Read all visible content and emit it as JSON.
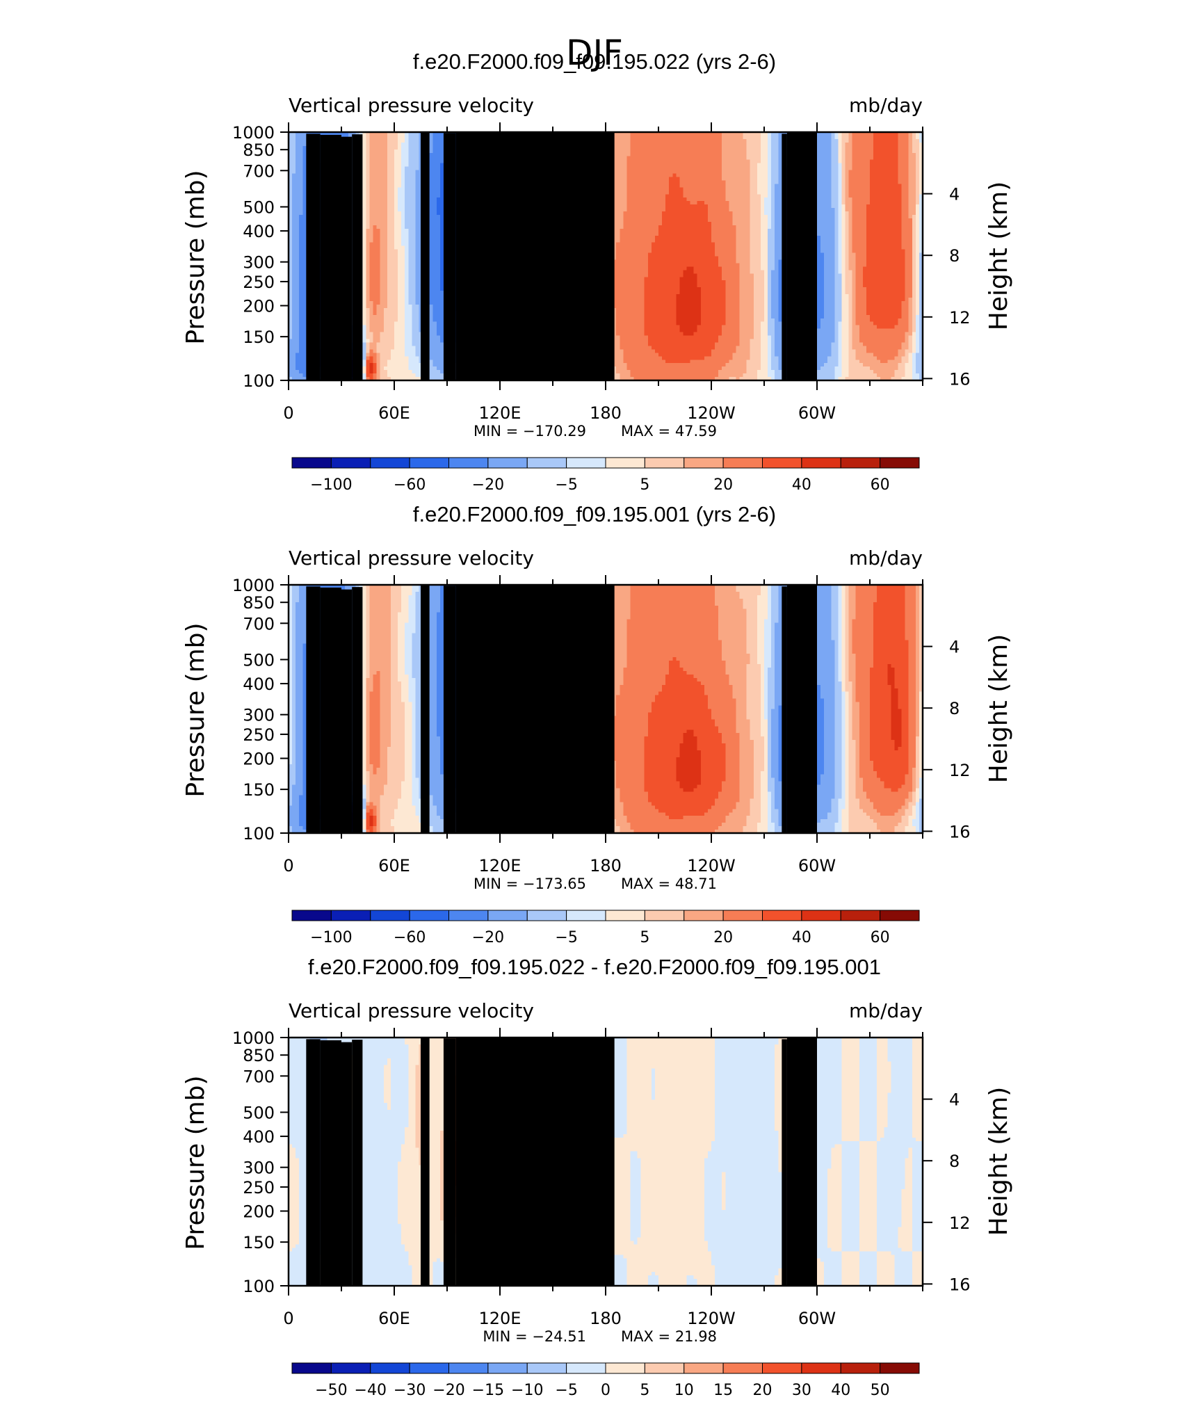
{
  "page_title": "DJF",
  "chart_data": [
    {
      "type": "contour",
      "title": "f.e20.F2000.f09_f09.195.022 (yrs 2-6)",
      "variable": "Vertical pressure velocity",
      "units": "mb/day",
      "ylabel": "Pressure (mb)",
      "y2label": "Height (km)",
      "pressure_ticks": [
        "100",
        "150",
        "200",
        "250",
        "300",
        "400",
        "500",
        "700",
        "850",
        "1000"
      ],
      "height_ticks": [
        "16",
        "12",
        "8",
        "4"
      ],
      "lon_ticks": [
        "0",
        "60E",
        "120E",
        "180",
        "120W",
        "60W"
      ],
      "min_label": "MIN = −170.29",
      "max_label": "MAX = 47.59",
      "min": -170.29,
      "max": 47.59,
      "colorbar_labels": [
        "−100",
        "−60",
        "−20",
        "−5",
        "5",
        "20",
        "40",
        "60"
      ],
      "colorbar_label_slots": [
        1,
        3,
        5,
        7,
        9,
        11,
        13,
        15
      ],
      "scale": 1.0,
      "features": [
        {
          "lon": 10,
          "p": 400,
          "amp": -60,
          "wl": 9,
          "wp": 350
        },
        {
          "lon": 28,
          "p": 430,
          "amp": -72,
          "wl": 10,
          "wp": 380
        },
        {
          "lon": 22,
          "p": 880,
          "amp": -45,
          "wl": 14,
          "wp": 120
        },
        {
          "lon": 45,
          "p": 370,
          "amp": 22,
          "wl": 7,
          "wp": 330
        },
        {
          "lon": 46,
          "p": 900,
          "amp": 48,
          "wl": 3,
          "wp": 90
        },
        {
          "lon": 37,
          "p": 900,
          "amp": -100,
          "wl": 3,
          "wp": 110
        },
        {
          "lon": 62,
          "p": 330,
          "amp": 5,
          "wl": 9,
          "wp": 320
        },
        {
          "lon": 100,
          "p": 330,
          "amp": -80,
          "wl": 17,
          "wp": 360
        },
        {
          "lon": 130,
          "p": 450,
          "amp": -60,
          "wl": 18,
          "wp": 420
        },
        {
          "lon": 113,
          "p": 820,
          "amp": -48,
          "wl": 7,
          "wp": 220
        },
        {
          "lon": 140,
          "p": 820,
          "amp": -28,
          "wl": 26,
          "wp": 220
        },
        {
          "lon": 115,
          "p": 160,
          "amp": -12,
          "wl": 32,
          "wp": 70
        },
        {
          "lon": 205,
          "p": 440,
          "amp": 14,
          "wl": 24,
          "wp": 420
        },
        {
          "lon": 232,
          "p": 520,
          "amp": 24,
          "wl": 18,
          "wp": 320
        },
        {
          "lon": 190,
          "p": 850,
          "amp": 6,
          "wl": 20,
          "wp": 200
        },
        {
          "lon": 285,
          "p": 460,
          "amp": -60,
          "wl": 7,
          "wp": 380
        },
        {
          "lon": 288,
          "p": 880,
          "amp": -100,
          "wl": 3,
          "wp": 120
        },
        {
          "lon": 302,
          "p": 420,
          "amp": -42,
          "wl": 8,
          "wp": 380
        },
        {
          "lon": 340,
          "p": 380,
          "amp": 28,
          "wl": 15,
          "wp": 320
        },
        {
          "lon": 5,
          "p": 360,
          "amp": 14,
          "wl": 5,
          "wp": 260
        },
        {
          "lon": 90,
          "p": 115,
          "amp": 3,
          "wl": 40,
          "wp": 40
        },
        {
          "lon": 325,
          "p": 140,
          "amp": 4,
          "wl": 30,
          "wp": 90
        }
      ]
    },
    {
      "type": "contour",
      "title": "f.e20.F2000.f09_f09.195.001 (yrs 2-6)",
      "variable": "Vertical pressure velocity",
      "units": "mb/day",
      "ylabel": "Pressure (mb)",
      "y2label": "Height (km)",
      "pressure_ticks": [
        "100",
        "150",
        "200",
        "250",
        "300",
        "400",
        "500",
        "700",
        "850",
        "1000"
      ],
      "height_ticks": [
        "16",
        "12",
        "8",
        "4"
      ],
      "lon_ticks": [
        "0",
        "60E",
        "120E",
        "180",
        "120W",
        "60W"
      ],
      "min_label": "MIN = −173.65",
      "max_label": "MAX = 48.71",
      "min": -173.65,
      "max": 48.71,
      "colorbar_labels": [
        "−100",
        "−60",
        "−20",
        "−5",
        "5",
        "20",
        "40",
        "60"
      ],
      "colorbar_label_slots": [
        1,
        3,
        5,
        7,
        9,
        11,
        13,
        15
      ],
      "scale": 1.0,
      "features": [
        {
          "lon": 10,
          "p": 400,
          "amp": -58,
          "wl": 9,
          "wp": 350
        },
        {
          "lon": 28,
          "p": 430,
          "amp": -70,
          "wl": 10,
          "wp": 380
        },
        {
          "lon": 22,
          "p": 880,
          "amp": -45,
          "wl": 14,
          "wp": 120
        },
        {
          "lon": 45,
          "p": 390,
          "amp": 22,
          "wl": 7,
          "wp": 330
        },
        {
          "lon": 46,
          "p": 900,
          "amp": 48,
          "wl": 3,
          "wp": 90
        },
        {
          "lon": 37,
          "p": 900,
          "amp": -100,
          "wl": 3,
          "wp": 110
        },
        {
          "lon": 62,
          "p": 330,
          "amp": 5,
          "wl": 9,
          "wp": 320
        },
        {
          "lon": 105,
          "p": 340,
          "amp": -78,
          "wl": 17,
          "wp": 360
        },
        {
          "lon": 130,
          "p": 450,
          "amp": -62,
          "wl": 18,
          "wp": 420
        },
        {
          "lon": 113,
          "p": 820,
          "amp": -48,
          "wl": 7,
          "wp": 220
        },
        {
          "lon": 140,
          "p": 820,
          "amp": -28,
          "wl": 26,
          "wp": 220
        },
        {
          "lon": 115,
          "p": 160,
          "amp": -12,
          "wl": 32,
          "wp": 70
        },
        {
          "lon": 205,
          "p": 440,
          "amp": 14,
          "wl": 24,
          "wp": 420
        },
        {
          "lon": 232,
          "p": 560,
          "amp": 24,
          "wl": 18,
          "wp": 300
        },
        {
          "lon": 190,
          "p": 850,
          "amp": 6,
          "wl": 20,
          "wp": 200
        },
        {
          "lon": 285,
          "p": 460,
          "amp": -62,
          "wl": 7,
          "wp": 380
        },
        {
          "lon": 288,
          "p": 880,
          "amp": -100,
          "wl": 3,
          "wp": 120
        },
        {
          "lon": 302,
          "p": 420,
          "amp": -42,
          "wl": 8,
          "wp": 380
        },
        {
          "lon": 345,
          "p": 380,
          "amp": 32,
          "wl": 15,
          "wp": 320
        },
        {
          "lon": 5,
          "p": 360,
          "amp": 14,
          "wl": 5,
          "wp": 260
        },
        {
          "lon": 90,
          "p": 115,
          "amp": 3,
          "wl": 40,
          "wp": 40
        },
        {
          "lon": 325,
          "p": 140,
          "amp": 4,
          "wl": 30,
          "wp": 90
        }
      ]
    },
    {
      "type": "contour",
      "title": "f.e20.F2000.f09_f09.195.022 - f.e20.F2000.f09_f09.195.001",
      "variable": "Vertical pressure velocity",
      "units": "mb/day",
      "ylabel": "Pressure (mb)",
      "y2label": "Height (km)",
      "pressure_ticks": [
        "100",
        "150",
        "200",
        "250",
        "300",
        "400",
        "500",
        "700",
        "850",
        "1000"
      ],
      "height_ticks": [
        "16",
        "12",
        "8",
        "4"
      ],
      "lon_ticks": [
        "0",
        "60E",
        "120E",
        "180",
        "120W",
        "60W"
      ],
      "min_label": "MIN = −24.51",
      "max_label": "MAX = 21.98",
      "min": -24.51,
      "max": 21.98,
      "colorbar_labels": [
        "−50",
        "−40",
        "−30",
        "−20",
        "−15",
        "−10",
        "−5",
        "0",
        "5",
        "10",
        "15",
        "20",
        "30",
        "40",
        "50"
      ],
      "colorbar_label_slots": [
        1,
        2,
        3,
        4,
        5,
        6,
        7,
        8,
        9,
        10,
        11,
        12,
        13,
        14,
        15
      ],
      "scale": 1.0,
      "features": [
        {
          "lon": 15,
          "p": 380,
          "amp": -16,
          "wl": 4,
          "wp": 220
        },
        {
          "lon": 25,
          "p": 500,
          "amp": -6,
          "wl": 6,
          "wp": 380
        },
        {
          "lon": 32,
          "p": 750,
          "amp": -4,
          "wl": 4,
          "wp": 200
        },
        {
          "lon": 75,
          "p": 330,
          "amp": 6,
          "wl": 4,
          "wp": 300
        },
        {
          "lon": 93,
          "p": 340,
          "amp": 18,
          "wl": 4,
          "wp": 200
        },
        {
          "lon": 100,
          "p": 420,
          "amp": 10,
          "wl": 5,
          "wp": 300
        },
        {
          "lon": 118,
          "p": 300,
          "amp": -6,
          "wl": 3,
          "wp": 250
        },
        {
          "lon": 125,
          "p": 500,
          "amp": 5,
          "wl": 6,
          "wp": 450
        },
        {
          "lon": 152,
          "p": 340,
          "amp": 8,
          "wl": 3,
          "wp": 250
        },
        {
          "lon": 170,
          "p": 500,
          "amp": 4,
          "wl": 6,
          "wp": 400
        },
        {
          "lon": 220,
          "p": 400,
          "amp": 3,
          "wl": 12,
          "wp": 400
        },
        {
          "lon": 290,
          "p": 340,
          "amp": 16,
          "wl": 2.5,
          "wp": 220
        },
        {
          "lon": 282,
          "p": 300,
          "amp": 6,
          "wl": 2,
          "wp": 150
        },
        {
          "lon": 300,
          "p": 330,
          "amp": -4,
          "wl": 4,
          "wp": 200
        },
        {
          "lon": 345,
          "p": 300,
          "amp": -5,
          "wl": 3,
          "wp": 150
        },
        {
          "lon": 50,
          "p": 600,
          "amp": -3,
          "wl": 8,
          "wp": 400
        },
        {
          "lon": 260,
          "p": 600,
          "amp": -3,
          "wl": 12,
          "wp": 400
        }
      ]
    }
  ],
  "colors": {
    "palette": [
      "#08088c",
      "#0a1fb5",
      "#1346d6",
      "#2b68ea",
      "#4d86f0",
      "#7aa7f4",
      "#a9c8f8",
      "#d6e8fc",
      "#fde8d3",
      "#fccbb0",
      "#f9a783",
      "#f67d55",
      "#f2522c",
      "#dd3215",
      "#b8200c",
      "#860b05"
    ],
    "topography": "#000000",
    "axis": "#000000"
  }
}
